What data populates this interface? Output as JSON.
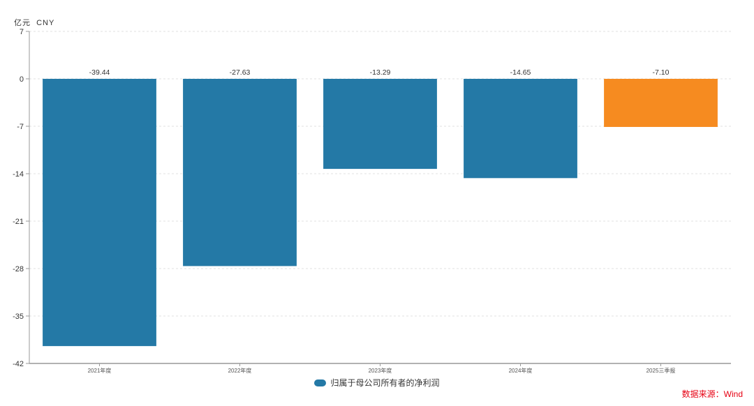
{
  "chart_data": {
    "type": "bar",
    "title": "",
    "unit_label": "亿元  CNY",
    "categories": [
      "2021年度",
      "2022年度",
      "2023年度",
      "2024年度",
      "2025三季报"
    ],
    "series": [
      {
        "name": "归属于母公司所有者的净利润",
        "values": [
          -39.44,
          -27.63,
          -13.29,
          -14.65,
          -7.1
        ],
        "colors": [
          "#2479A6",
          "#2479A6",
          "#2479A6",
          "#2479A6",
          "#F68B20"
        ]
      }
    ],
    "data_labels": [
      "-39.44",
      "-27.63",
      "-13.29",
      "-14.65",
      "-7.10"
    ],
    "y_ticks": [
      7,
      0,
      -7,
      -14,
      -21,
      -28,
      -35,
      -42
    ],
    "ylim": [
      -42,
      7
    ],
    "xlabel": "",
    "ylabel": "亿元 CNY",
    "grid": "horizontal-dashed",
    "legend_position": "bottom-center",
    "legend": "归属于母公司所有者的净利润"
  },
  "source_label": "数据来源：Wind",
  "colors": {
    "bar_default": "#2479A6",
    "bar_highlight": "#F68B20",
    "source_text": "#E60012",
    "axis_line": "#999999",
    "gridline": "#e2e2e2",
    "label_text": "#333333"
  }
}
